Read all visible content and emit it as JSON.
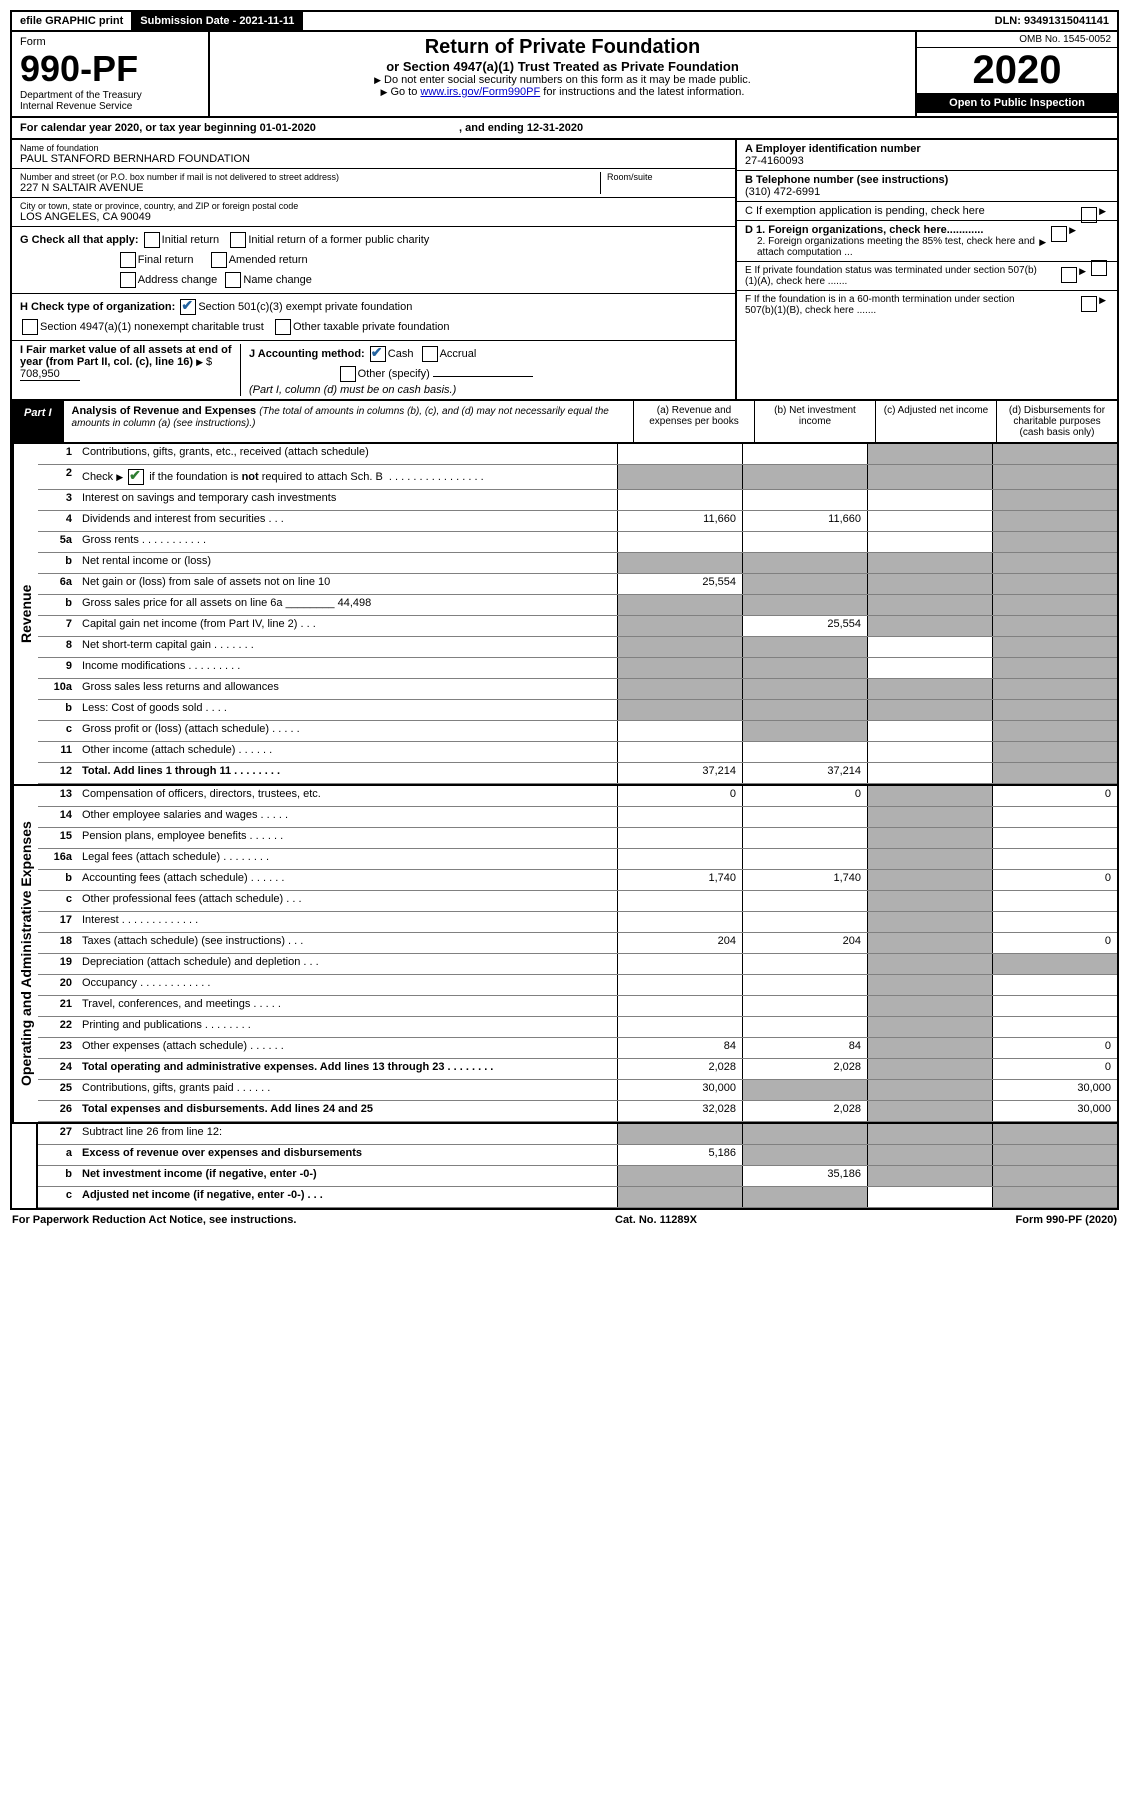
{
  "topBar": {
    "efile": "efile GRAPHIC print",
    "submission": "Submission Date - 2021-11-11",
    "dln": "DLN: 93491315041141"
  },
  "header": {
    "form": "Form",
    "formNo": "990-PF",
    "dept": "Department of the Treasury",
    "irs": "Internal Revenue Service",
    "title": "Return of Private Foundation",
    "subtitle": "or Section 4947(a)(1) Trust Treated as Private Foundation",
    "note1": "Do not enter social security numbers on this form as it may be made public.",
    "note2Pre": "Go to ",
    "note2Link": "www.irs.gov/Form990PF",
    "note2Post": " for instructions and the latest information.",
    "omb": "OMB No. 1545-0052",
    "year": "2020",
    "openPublic": "Open to Public Inspection"
  },
  "calYear": {
    "textPre": "For calendar year 2020, or tax year beginning ",
    "begin": "01-01-2020",
    "mid": " , and ending ",
    "end": "12-31-2020"
  },
  "entity": {
    "nameLabel": "Name of foundation",
    "name": "PAUL STANFORD BERNHARD FOUNDATION",
    "addrLabel": "Number and street (or P.O. box number if mail is not delivered to street address)",
    "addr": "227 N SALTAIR AVENUE",
    "roomLabel": "Room/suite",
    "cityLabel": "City or town, state or province, country, and ZIP or foreign postal code",
    "city": "LOS ANGELES, CA  90049",
    "einLabel": "A Employer identification number",
    "ein": "27-4160093",
    "phoneLabel": "B Telephone number (see instructions)",
    "phone": "(310) 472-6991",
    "cLabel": "C If exemption application is pending, check here",
    "d1": "D 1. Foreign organizations, check here............",
    "d2": "2. Foreign organizations meeting the 85% test, check here and attach computation ...",
    "eLabel": "E  If private foundation status was terminated under section 507(b)(1)(A), check here .......",
    "fLabel": "F  If the foundation is in a 60-month termination under section 507(b)(1)(B), check here ......."
  },
  "checks": {
    "gLabel": "G Check all that apply:",
    "initial": "Initial return",
    "initialFormer": "Initial return of a former public charity",
    "final": "Final return",
    "amended": "Amended return",
    "addrChange": "Address change",
    "nameChange": "Name change",
    "hLabel": "H Check type of organization:",
    "h501c3": "Section 501(c)(3) exempt private foundation",
    "h4947": "Section 4947(a)(1) nonexempt charitable trust",
    "hOther": "Other taxable private foundation",
    "iLabel": "I Fair market value of all assets at end of year (from Part II, col. (c), line 16)",
    "iValue": "708,950",
    "jLabel": "J Accounting method:",
    "jCash": "Cash",
    "jAccrual": "Accrual",
    "jOther": "Other (specify)",
    "jNote": "(Part I, column (d) must be on cash basis.)"
  },
  "part1": {
    "tag": "Part I",
    "title": "Analysis of Revenue and Expenses",
    "subtitle": "(The total of amounts in columns (b), (c), and (d) may not necessarily equal the amounts in column (a) (see instructions).)",
    "colA": "(a)  Revenue and expenses per books",
    "colB": "(b)  Net investment income",
    "colC": "(c)  Adjusted net income",
    "colD": "(d)  Disbursements for charitable purposes (cash basis only)"
  },
  "sideLabels": {
    "revenue": "Revenue",
    "expenses": "Operating and Administrative Expenses"
  },
  "rows": [
    {
      "no": "1",
      "desc": "Contributions, gifts, grants, etc., received (attach schedule)",
      "a": "",
      "b": "",
      "c": "grey",
      "d": "grey"
    },
    {
      "no": "2",
      "desc": "Check ▶ ☑ if the foundation is not required to attach Sch. B  . . . . . . . . . . . . . . . .",
      "a": "grey",
      "b": "grey",
      "c": "grey",
      "d": "grey",
      "checkgreen": true
    },
    {
      "no": "3",
      "desc": "Interest on savings and temporary cash investments",
      "a": "",
      "b": "",
      "c": "",
      "d": "grey"
    },
    {
      "no": "4",
      "desc": "Dividends and interest from securities  . . .",
      "a": "11,660",
      "b": "11,660",
      "c": "",
      "d": "grey"
    },
    {
      "no": "5a",
      "desc": "Gross rents  . . . . . . . . . . .",
      "a": "",
      "b": "",
      "c": "",
      "d": "grey"
    },
    {
      "no": "b",
      "desc": "Net rental income or (loss)",
      "a": "grey",
      "b": "grey",
      "c": "grey",
      "d": "grey"
    },
    {
      "no": "6a",
      "desc": "Net gain or (loss) from sale of assets not on line 10",
      "a": "25,554",
      "b": "grey",
      "c": "grey",
      "d": "grey"
    },
    {
      "no": "b",
      "desc": "Gross sales price for all assets on line 6a ________ 44,498",
      "a": "grey",
      "b": "grey",
      "c": "grey",
      "d": "grey"
    },
    {
      "no": "7",
      "desc": "Capital gain net income (from Part IV, line 2)  . . .",
      "a": "grey",
      "b": "25,554",
      "c": "grey",
      "d": "grey"
    },
    {
      "no": "8",
      "desc": "Net short-term capital gain  . . . . . . .",
      "a": "grey",
      "b": "grey",
      "c": "",
      "d": "grey"
    },
    {
      "no": "9",
      "desc": "Income modifications  . . . . . . . . .",
      "a": "grey",
      "b": "grey",
      "c": "",
      "d": "grey"
    },
    {
      "no": "10a",
      "desc": "Gross sales less returns and allowances",
      "a": "grey",
      "b": "grey",
      "c": "grey",
      "d": "grey"
    },
    {
      "no": "b",
      "desc": "Less: Cost of goods sold  . . . .",
      "a": "grey",
      "b": "grey",
      "c": "grey",
      "d": "grey"
    },
    {
      "no": "c",
      "desc": "Gross profit or (loss) (attach schedule)  . . . . .",
      "a": "",
      "b": "grey",
      "c": "",
      "d": "grey"
    },
    {
      "no": "11",
      "desc": "Other income (attach schedule)  . . . . . .",
      "a": "",
      "b": "",
      "c": "",
      "d": "grey"
    },
    {
      "no": "12",
      "desc": "Total. Add lines 1 through 11  . . . . . . . .",
      "a": "37,214",
      "b": "37,214",
      "c": "",
      "d": "grey",
      "bold": true
    }
  ],
  "expRows": [
    {
      "no": "13",
      "desc": "Compensation of officers, directors, trustees, etc.",
      "a": "0",
      "b": "0",
      "c": "grey",
      "d": "0"
    },
    {
      "no": "14",
      "desc": "Other employee salaries and wages  . . . . .",
      "a": "",
      "b": "",
      "c": "grey",
      "d": ""
    },
    {
      "no": "15",
      "desc": "Pension plans, employee benefits  . . . . . .",
      "a": "",
      "b": "",
      "c": "grey",
      "d": ""
    },
    {
      "no": "16a",
      "desc": "Legal fees (attach schedule)  . . . . . . . .",
      "a": "",
      "b": "",
      "c": "grey",
      "d": ""
    },
    {
      "no": "b",
      "desc": "Accounting fees (attach schedule)  . . . . . .",
      "a": "1,740",
      "b": "1,740",
      "c": "grey",
      "d": "0"
    },
    {
      "no": "c",
      "desc": "Other professional fees (attach schedule)  . . .",
      "a": "",
      "b": "",
      "c": "grey",
      "d": ""
    },
    {
      "no": "17",
      "desc": "Interest  . . . . . . . . . . . . .",
      "a": "",
      "b": "",
      "c": "grey",
      "d": ""
    },
    {
      "no": "18",
      "desc": "Taxes (attach schedule) (see instructions)  . . .",
      "a": "204",
      "b": "204",
      "c": "grey",
      "d": "0"
    },
    {
      "no": "19",
      "desc": "Depreciation (attach schedule) and depletion  . . .",
      "a": "",
      "b": "",
      "c": "grey",
      "d": "grey"
    },
    {
      "no": "20",
      "desc": "Occupancy  . . . . . . . . . . . .",
      "a": "",
      "b": "",
      "c": "grey",
      "d": ""
    },
    {
      "no": "21",
      "desc": "Travel, conferences, and meetings  . . . . .",
      "a": "",
      "b": "",
      "c": "grey",
      "d": ""
    },
    {
      "no": "22",
      "desc": "Printing and publications  . . . . . . . .",
      "a": "",
      "b": "",
      "c": "grey",
      "d": ""
    },
    {
      "no": "23",
      "desc": "Other expenses (attach schedule)  . . . . . .",
      "a": "84",
      "b": "84",
      "c": "grey",
      "d": "0"
    },
    {
      "no": "24",
      "desc": "Total operating and administrative expenses. Add lines 13 through 23  . . . . . . . .",
      "a": "2,028",
      "b": "2,028",
      "c": "grey",
      "d": "0",
      "bold": true
    },
    {
      "no": "25",
      "desc": "Contributions, gifts, grants paid  . . . . . .",
      "a": "30,000",
      "b": "grey",
      "c": "grey",
      "d": "30,000"
    },
    {
      "no": "26",
      "desc": "Total expenses and disbursements. Add lines 24 and 25",
      "a": "32,028",
      "b": "2,028",
      "c": "grey",
      "d": "30,000",
      "bold": true
    }
  ],
  "netRows": [
    {
      "no": "27",
      "desc": "Subtract line 26 from line 12:",
      "a": "grey",
      "b": "grey",
      "c": "grey",
      "d": "grey"
    },
    {
      "no": "a",
      "desc": "Excess of revenue over expenses and disbursements",
      "a": "5,186",
      "b": "grey",
      "c": "grey",
      "d": "grey",
      "bold": true
    },
    {
      "no": "b",
      "desc": "Net investment income (if negative, enter -0-)",
      "a": "grey",
      "b": "35,186",
      "c": "grey",
      "d": "grey",
      "bold": true
    },
    {
      "no": "c",
      "desc": "Adjusted net income (if negative, enter -0-)  . . .",
      "a": "grey",
      "b": "grey",
      "c": "",
      "d": "grey",
      "bold": true
    }
  ],
  "footer": {
    "left": "For Paperwork Reduction Act Notice, see instructions.",
    "mid": "Cat. No. 11289X",
    "right": "Form 990-PF (2020)"
  }
}
